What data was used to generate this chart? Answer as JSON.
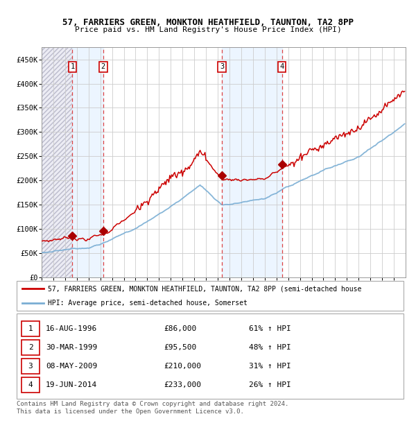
{
  "title": "57, FARRIERS GREEN, MONKTON HEATHFIELD, TAUNTON, TA2 8PP",
  "subtitle": "Price paid vs. HM Land Registry's House Price Index (HPI)",
  "sale_prices": [
    86000,
    95500,
    210000,
    233000
  ],
  "sale_labels": [
    "1",
    "2",
    "3",
    "4"
  ],
  "sale_hpi_pct": [
    "61% ↑ HPI",
    "48% ↑ HPI",
    "31% ↑ HPI",
    "26% ↑ HPI"
  ],
  "sale_dates_str": [
    "16-AUG-1996",
    "30-MAR-1999",
    "08-MAY-2009",
    "19-JUN-2014"
  ],
  "sale_prices_str": [
    "£86,000",
    "£95,500",
    "£210,000",
    "£233,000"
  ],
  "sale_year_floats": [
    1996.625,
    1999.247,
    2009.356,
    2014.466
  ],
  "red_line_color": "#cc0000",
  "blue_line_color": "#7aaed4",
  "vline_color": "#dd4444",
  "vband_color": "#ddeeff",
  "hatch_color": "#e0e0ee",
  "marker_color": "#aa0000",
  "legend_label_red": "57, FARRIERS GREEN, MONKTON HEATHFIELD, TAUNTON, TA2 8PP (semi-detached house",
  "legend_label_blue": "HPI: Average price, semi-detached house, Somerset",
  "footer": "Contains HM Land Registry data © Crown copyright and database right 2024.\nThis data is licensed under the Open Government Licence v3.0.",
  "ylim": [
    0,
    475000
  ],
  "yticks": [
    0,
    50000,
    100000,
    150000,
    200000,
    250000,
    300000,
    350000,
    400000,
    450000
  ],
  "ytick_labels": [
    "£0",
    "£50K",
    "£100K",
    "£150K",
    "£200K",
    "£250K",
    "£300K",
    "£350K",
    "£400K",
    "£450K"
  ],
  "xmin": 1994,
  "xmax": 2025
}
